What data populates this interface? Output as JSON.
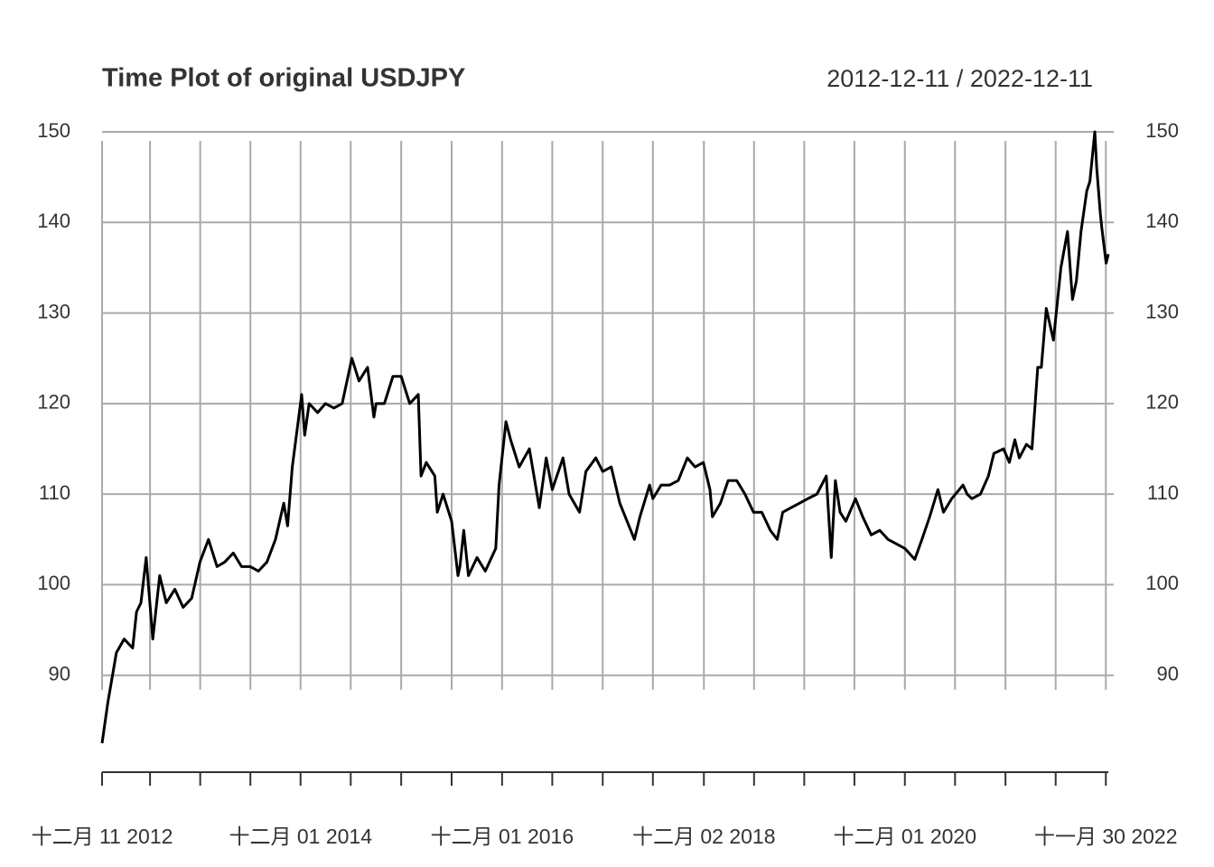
{
  "chart_data": {
    "type": "line",
    "title": "Time Plot of original USDJPY",
    "subtitle": "2012-12-11 / 2022-12-11",
    "xlim": [
      "2012-12-11",
      "2022-12-09"
    ],
    "ylim": [
      79.3,
      150
    ],
    "yticks": [
      90,
      100,
      110,
      120,
      130,
      140,
      150
    ],
    "xticks": [
      {
        "value": "2012-12-11",
        "label": "十二月 11 2012"
      },
      {
        "value": "2013-06-03",
        "label": null
      },
      {
        "value": "2013-12-02",
        "label": null
      },
      {
        "value": "2014-06-02",
        "label": null
      },
      {
        "value": "2014-12-01",
        "label": "十二月 01 2014"
      },
      {
        "value": "2015-06-01",
        "label": null
      },
      {
        "value": "2015-12-01",
        "label": null
      },
      {
        "value": "2016-06-01",
        "label": null
      },
      {
        "value": "2016-12-01",
        "label": "十二月 01 2016"
      },
      {
        "value": "2017-06-01",
        "label": null
      },
      {
        "value": "2017-12-01",
        "label": null
      },
      {
        "value": "2018-06-01",
        "label": null
      },
      {
        "value": "2018-12-03",
        "label": "十二月 02 2018"
      },
      {
        "value": "2019-06-03",
        "label": null
      },
      {
        "value": "2019-12-02",
        "label": null
      },
      {
        "value": "2020-06-01",
        "label": null
      },
      {
        "value": "2020-12-01",
        "label": "十二月 01 2020"
      },
      {
        "value": "2021-06-01",
        "label": null
      },
      {
        "value": "2021-12-01",
        "label": null
      },
      {
        "value": "2022-06-01",
        "label": null
      },
      {
        "value": "2022-11-30",
        "label": "十一月 30 2022"
      }
    ],
    "grid": true,
    "color": "#000000",
    "x": [
      "2012-12-11",
      "2013-01-01",
      "2013-02-01",
      "2013-03-01",
      "2013-04-01",
      "2013-04-15",
      "2013-05-01",
      "2013-05-20",
      "2013-06-13",
      "2013-07-08",
      "2013-08-01",
      "2013-09-01",
      "2013-10-01",
      "2013-11-01",
      "2013-12-01",
      "2014-01-01",
      "2014-02-01",
      "2014-03-01",
      "2014-04-01",
      "2014-05-01",
      "2014-06-01",
      "2014-07-01",
      "2014-08-01",
      "2014-09-01",
      "2014-10-01",
      "2014-10-15",
      "2014-11-01",
      "2014-12-05",
      "2014-12-16",
      "2015-01-01",
      "2015-02-01",
      "2015-03-01",
      "2015-04-01",
      "2015-05-01",
      "2015-06-05",
      "2015-07-01",
      "2015-08-01",
      "2015-08-24",
      "2015-09-01",
      "2015-10-01",
      "2015-11-01",
      "2015-12-01",
      "2016-01-01",
      "2016-02-01",
      "2016-02-11",
      "2016-03-01",
      "2016-04-01",
      "2016-04-10",
      "2016-05-01",
      "2016-06-01",
      "2016-06-24",
      "2016-07-01",
      "2016-07-15",
      "2016-08-01",
      "2016-09-01",
      "2016-10-01",
      "2016-11-08",
      "2016-11-20",
      "2016-12-15",
      "2017-01-01",
      "2017-02-01",
      "2017-03-10",
      "2017-04-15",
      "2017-05-10",
      "2017-06-01",
      "2017-07-10",
      "2017-08-01",
      "2017-09-08",
      "2017-10-01",
      "2017-11-06",
      "2017-12-01",
      "2018-01-01",
      "2018-02-01",
      "2018-03-26",
      "2018-04-15",
      "2018-05-20",
      "2018-06-01",
      "2018-07-01",
      "2018-08-01",
      "2018-09-01",
      "2018-10-04",
      "2018-11-01",
      "2018-12-01",
      "2018-12-25",
      "2019-01-03",
      "2019-02-01",
      "2019-03-01",
      "2019-04-01",
      "2019-05-01",
      "2019-06-01",
      "2019-07-01",
      "2019-08-01",
      "2019-08-26",
      "2019-09-15",
      "2019-10-15",
      "2019-11-15",
      "2019-12-15",
      "2020-01-17",
      "2020-02-20",
      "2020-03-09",
      "2020-03-24",
      "2020-04-10",
      "2020-05-01",
      "2020-06-05",
      "2020-07-01",
      "2020-08-01",
      "2020-09-01",
      "2020-10-01",
      "2020-11-01",
      "2020-12-01",
      "2021-01-06",
      "2021-02-01",
      "2021-03-01",
      "2021-03-31",
      "2021-04-20",
      "2021-05-20",
      "2021-06-30",
      "2021-07-15",
      "2021-08-01",
      "2021-09-01",
      "2021-09-30",
      "2021-10-20",
      "2021-11-24",
      "2021-12-15",
      "2022-01-04",
      "2022-01-20",
      "2022-02-15",
      "2022-03-07",
      "2022-03-28",
      "2022-04-10",
      "2022-04-28",
      "2022-05-24",
      "2022-06-20",
      "2022-07-14",
      "2022-08-01",
      "2022-08-15",
      "2022-09-01",
      "2022-09-22",
      "2022-10-03",
      "2022-10-21",
      "2022-10-28",
      "2022-11-10",
      "2022-11-15",
      "2022-12-01",
      "2022-12-09"
    ],
    "values": [
      82.5,
      87,
      92.5,
      94,
      93,
      97,
      98,
      103,
      94,
      101,
      98,
      99.5,
      97.5,
      98.5,
      102.5,
      105,
      102,
      102.5,
      103.5,
      102,
      102,
      101.5,
      102.5,
      105,
      109,
      106.5,
      113,
      121,
      116.5,
      120,
      119,
      120,
      119.5,
      120,
      125,
      122.5,
      124,
      118.5,
      120,
      120,
      123,
      123,
      120,
      121,
      112,
      113.5,
      112,
      108,
      110,
      107,
      101,
      102,
      106,
      101,
      103,
      101.5,
      104,
      111,
      118,
      116,
      113,
      115,
      108.5,
      114,
      110.5,
      114,
      110,
      108,
      112.5,
      114,
      112.5,
      113,
      109,
      105,
      107.5,
      111,
      109.5,
      111,
      111,
      111.5,
      114,
      113,
      113.5,
      110.5,
      107.5,
      109,
      111.5,
      111.5,
      110,
      108,
      108,
      106,
      105,
      108,
      108.5,
      109,
      109.5,
      110,
      112,
      103,
      111.5,
      108,
      107,
      109.5,
      107.5,
      105.5,
      106,
      105,
      104.5,
      104,
      102.8,
      105,
      107.5,
      110.5,
      108,
      109.5,
      111,
      110,
      109.5,
      110,
      112,
      114.5,
      115,
      113.5,
      116,
      114,
      115.5,
      115,
      124,
      124,
      130.5,
      127,
      135,
      139,
      131.5,
      133.5,
      139,
      143.5,
      144.5,
      150,
      146,
      141,
      139.5,
      135.5,
      136.5
    ]
  }
}
